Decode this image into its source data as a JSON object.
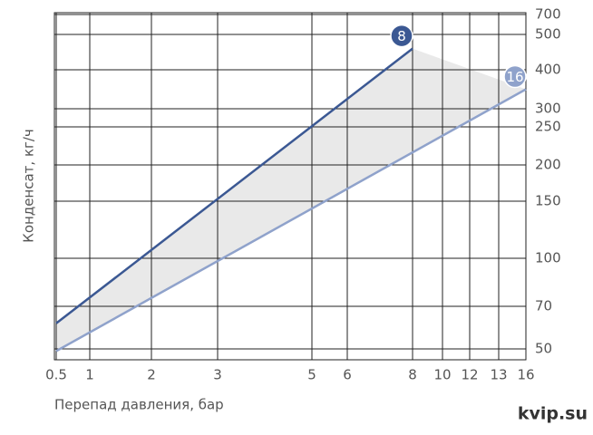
{
  "chart_data": {
    "type": "line",
    "y_label": "Конденсат, кг/ч",
    "x_label": "Перепад давления, бар",
    "watermark": "kvip.su",
    "xlim": [
      0.5,
      16
    ],
    "ylim": [
      50,
      700
    ],
    "xticks": [
      0.5,
      1,
      2,
      3,
      5,
      6,
      8,
      10,
      12,
      13,
      16
    ],
    "yticks": [
      50,
      70,
      100,
      150,
      200,
      250,
      300,
      400,
      500,
      700
    ],
    "grid": true,
    "series": [
      {
        "name": "8",
        "color": "#3b5893",
        "x": [
          0.5,
          8
        ],
        "values": [
          62,
          460
        ]
      },
      {
        "name": "16",
        "color": "#8fa2cb",
        "x": [
          0.5,
          16
        ],
        "values": [
          49,
          350
        ]
      }
    ]
  }
}
